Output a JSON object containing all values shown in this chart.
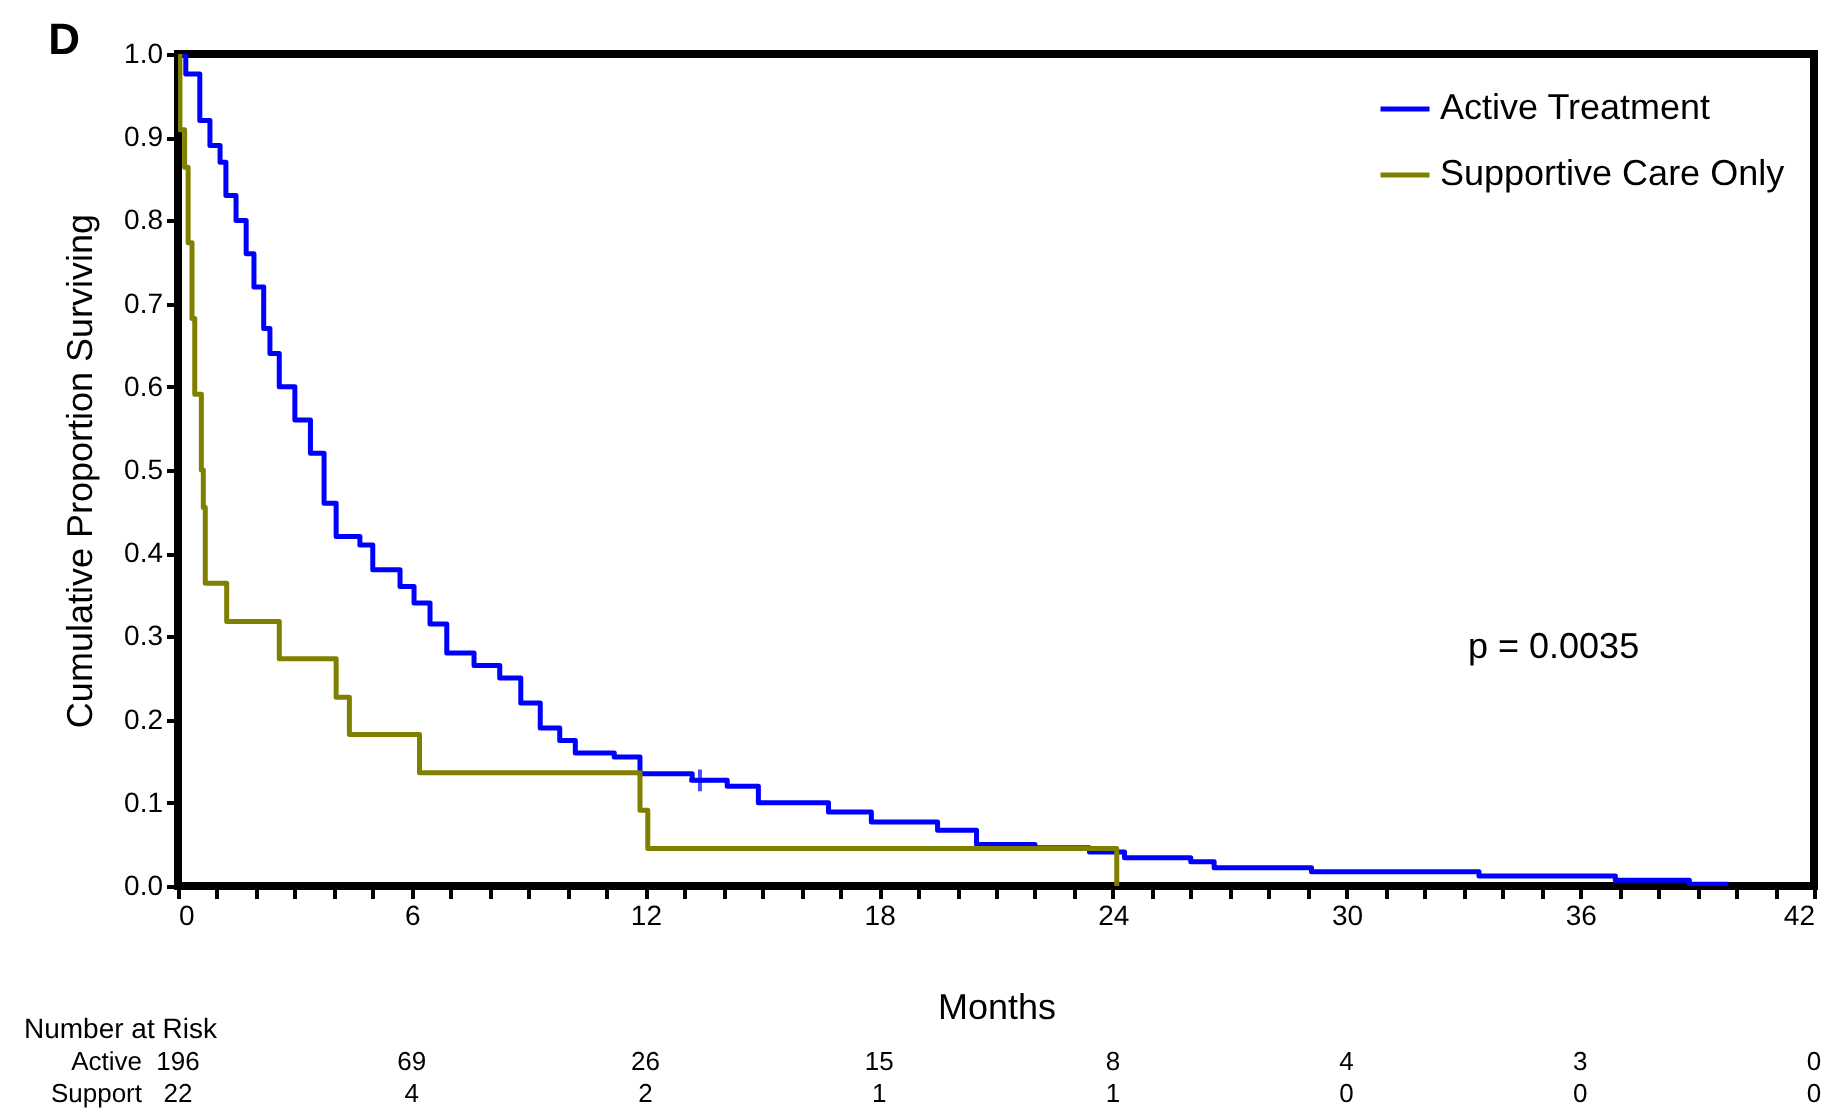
{
  "chart_data": {
    "type": "step",
    "title": "D",
    "xlabel": "Months",
    "ylabel": "Cumulative Proportion Surviving",
    "xlim": [
      0,
      42
    ],
    "ylim": [
      0,
      1.0
    ],
    "xticks": [
      0,
      {
        "value": 1,
        "label": null
      },
      {
        "value": 2,
        "label": null
      },
      {
        "value": 3,
        "label": null
      },
      {
        "value": 4,
        "label": null
      },
      {
        "value": 5,
        "label": null
      },
      6,
      {
        "value": 7,
        "label": null
      },
      {
        "value": 8,
        "label": null
      },
      {
        "value": 9,
        "label": null
      },
      {
        "value": 10,
        "label": null
      },
      {
        "value": 11,
        "label": null
      },
      12,
      {
        "value": 13,
        "label": null
      },
      {
        "value": 14,
        "label": null
      },
      {
        "value": 15,
        "label": null
      },
      {
        "value": 16,
        "label": null
      },
      {
        "value": 17,
        "label": null
      },
      18,
      {
        "value": 19,
        "label": null
      },
      {
        "value": 20,
        "label": null
      },
      {
        "value": 21,
        "label": null
      },
      {
        "value": 22,
        "label": null
      },
      {
        "value": 23,
        "label": null
      },
      24,
      {
        "value": 25,
        "label": null
      },
      {
        "value": 26,
        "label": null
      },
      {
        "value": 27,
        "label": null
      },
      {
        "value": 28,
        "label": null
      },
      {
        "value": 29,
        "label": null
      },
      30,
      {
        "value": 31,
        "label": null
      },
      {
        "value": 32,
        "label": null
      },
      {
        "value": 33,
        "label": null
      },
      {
        "value": 34,
        "label": null
      },
      {
        "value": 35,
        "label": null
      },
      36,
      {
        "value": 37,
        "label": null
      },
      {
        "value": 38,
        "label": null
      },
      {
        "value": 39,
        "label": null
      },
      {
        "value": 40,
        "label": null
      },
      {
        "value": 41,
        "label": null
      },
      42
    ],
    "yticks": [
      {
        "value": 0,
        "label": "0.0"
      },
      {
        "value": 0.1,
        "label": "0.1"
      },
      {
        "value": 0.2,
        "label": "0.2"
      },
      {
        "value": 0.3,
        "label": "0.3"
      },
      {
        "value": 0.4,
        "label": "0.4"
      },
      {
        "value": 0.5,
        "label": "0.5"
      },
      {
        "value": 0.6,
        "label": "0.6"
      },
      {
        "value": 0.7,
        "label": "0.7"
      },
      {
        "value": 0.8,
        "label": "0.8"
      },
      {
        "value": 0.9,
        "label": "0.9"
      },
      {
        "value": 1.0,
        "label": "1.0"
      }
    ],
    "grid": false,
    "legend": "top right",
    "line_style": "solid",
    "series": [
      {
        "name": "Active Treatment",
        "color": "#0000ff",
        "x": [
          0,
          0.2,
          0.56,
          0.82,
          1.08,
          1.23,
          1.49,
          1.75,
          1.95,
          2.2,
          2.36,
          2.6,
          3.0,
          3.4,
          3.75,
          4.06,
          4.67,
          5.0,
          5.7,
          6.06,
          6.47,
          6.9,
          7.6,
          8.26,
          8.8,
          9.3,
          9.8,
          10.2,
          11.2,
          11.86,
          13.2,
          14.1,
          14.9,
          16.7,
          17.8,
          19.5,
          20.5,
          22.0,
          23.4,
          24.3,
          26.0,
          26.6,
          29.1,
          33.4,
          36.9,
          38.8,
          39.8
        ],
        "values": [
          1.0,
          0.976,
          0.92,
          0.89,
          0.87,
          0.83,
          0.8,
          0.76,
          0.72,
          0.67,
          0.64,
          0.6,
          0.56,
          0.52,
          0.46,
          0.42,
          0.41,
          0.38,
          0.36,
          0.34,
          0.315,
          0.28,
          0.265,
          0.25,
          0.22,
          0.19,
          0.175,
          0.16,
          0.155,
          0.135,
          0.127,
          0.12,
          0.1,
          0.089,
          0.077,
          0.067,
          0.05,
          0.046,
          0.041,
          0.034,
          0.029,
          0.022,
          0.017,
          0.012,
          0.007,
          0.002,
          0.002
        ]
      },
      {
        "name": "Supportive Care Only",
        "color": "#808000",
        "x": [
          0,
          0.05,
          0.17,
          0.26,
          0.36,
          0.43,
          0.6,
          0.65,
          0.7,
          1.25,
          2.6,
          4.06,
          4.4,
          6.2,
          11.86,
          12.06,
          24.1
        ],
        "values": [
          1.0,
          0.909,
          0.864,
          0.773,
          0.682,
          0.591,
          0.5,
          0.455,
          0.364,
          0.318,
          0.273,
          0.227,
          0.182,
          0.136,
          0.091,
          0.045,
          0.0
        ]
      },
      {
        "type": "scatter",
        "marker": "cross",
        "color": "#0000ff",
        "x": [
          13.4
        ],
        "values": [
          0.127
        ]
      }
    ],
    "annotations": [
      "p = 0.0035",
      "Number at Risk",
      "Active 196 69 26 15 8 4 3 0",
      "Support 22 4 2 1 1 0 0 0"
    ]
  }
}
